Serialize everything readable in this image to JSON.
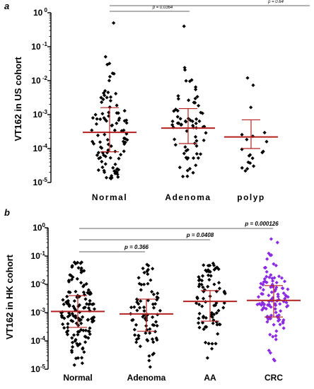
{
  "chart_data": [
    {
      "type": "scatter",
      "panel": "a",
      "ylabel": "VT162 in US cohort",
      "yscale": "log",
      "ylim": [
        1e-05,
        1
      ],
      "yticks": [
        {
          "base": "10",
          "exp": " 0"
        },
        {
          "base": "10",
          "exp": " -1"
        },
        {
          "base": "10",
          "exp": " -2"
        },
        {
          "base": "10",
          "exp": "-3"
        },
        {
          "base": "10",
          "exp": "-4"
        },
        {
          "base": "10",
          "exp": "-5"
        }
      ],
      "categories": [
        "Normal",
        "Adenoma",
        "polyp"
      ],
      "marker_color": "#000000",
      "summary_color": "#b22222",
      "groups": [
        {
          "category": "Normal",
          "n": 100,
          "median": 0.0003,
          "q1": 8e-05,
          "q3": 0.0016,
          "min": 1.3e-05,
          "max": 0.5
        },
        {
          "category": "Adenoma",
          "n": 70,
          "median": 0.0004,
          "q1": 0.00014,
          "q3": 0.0015,
          "min": 1.5e-05,
          "max": 0.4
        },
        {
          "category": "polyp",
          "n": 20,
          "median": 0.00022,
          "q1": 0.0001,
          "q3": 0.0007,
          "min": 2.2e-05,
          "max": 0.012
        }
      ],
      "comparisons": [
        {
          "from": "Normal",
          "to": "Adenoma",
          "label": "p = 0.0364"
        },
        {
          "from": "Normal",
          "to": "polyp",
          "label": "p = 0.64"
        }
      ]
    },
    {
      "type": "scatter",
      "panel": "b",
      "ylabel": "VT162 in HK cohort",
      "yscale": "log",
      "ylim": [
        1e-05,
        1
      ],
      "yticks": [
        {
          "base": "10",
          "exp": "0"
        },
        {
          "base": "10",
          "exp": "-1"
        },
        {
          "base": "10",
          "exp": "-2"
        },
        {
          "base": "10",
          "exp": "-3"
        },
        {
          "base": "10",
          "exp": "-4"
        },
        {
          "base": "10",
          "exp": "-5"
        }
      ],
      "categories": [
        "Normal",
        "Adenoma",
        "AA",
        "CRC"
      ],
      "marker_colors": [
        "#000000",
        "#000000",
        "#000000",
        "#8b2be2"
      ],
      "summary_color": "#b22222",
      "groups": [
        {
          "category": "Normal",
          "n": 140,
          "median": 0.0011,
          "q1": 0.0003,
          "q3": 0.004,
          "min": 1.4e-05,
          "max": 0.06
        },
        {
          "category": "Adenoma",
          "n": 80,
          "median": 0.0009,
          "q1": 0.00022,
          "q3": 0.003,
          "min": 1.2e-05,
          "max": 0.05
        },
        {
          "category": "AA",
          "n": 80,
          "median": 0.0025,
          "q1": 0.0005,
          "q3": 0.006,
          "min": 2.5e-05,
          "max": 0.055
        },
        {
          "category": "CRC",
          "n": 110,
          "median": 0.0027,
          "q1": 0.0007,
          "q3": 0.009,
          "min": 2e-05,
          "max": 0.4
        }
      ],
      "comparisons": [
        {
          "from": "Normal",
          "to": "Adenoma",
          "label": "p = 0.366"
        },
        {
          "from": "Normal",
          "to": "AA",
          "label": "p = 0.0408"
        },
        {
          "from": "Normal",
          "to": "CRC",
          "label": "p = 0.000126"
        }
      ]
    }
  ]
}
